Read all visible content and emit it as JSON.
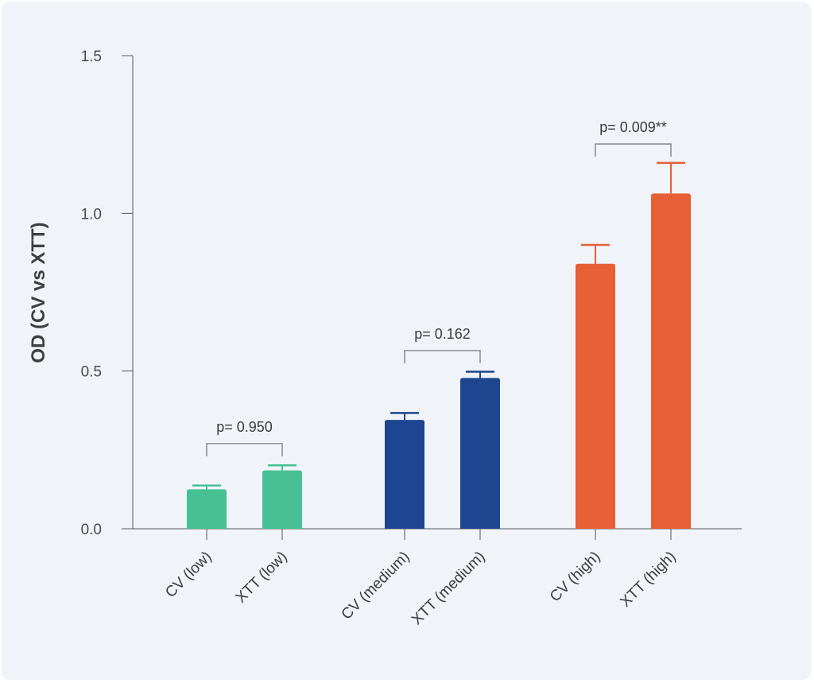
{
  "chart_data": {
    "type": "bar",
    "title": "",
    "xlabel": "",
    "ylabel": "OD (CV vs XTT)",
    "ylim": [
      0,
      1.5
    ],
    "yticks": [
      "0.0",
      "0.5",
      "1.0",
      "1.5"
    ],
    "ytick_values": [
      0,
      0.5,
      1.0,
      1.5
    ],
    "grid": false,
    "categories": [
      "CV (low)",
      "XTT (low)",
      "CV (medium)",
      "XTT (medium)",
      "CV (high)",
      "XTT (high)"
    ],
    "values": [
      0.125,
      0.185,
      0.345,
      0.478,
      0.84,
      1.063
    ],
    "errors": [
      0.012,
      0.016,
      0.022,
      0.02,
      0.06,
      0.097
    ],
    "colors": [
      "#46c094",
      "#46c094",
      "#1e4590",
      "#1e4590",
      "#e65f35",
      "#e65f35"
    ],
    "comparisons": [
      {
        "label": "p= 0.950",
        "between": [
          0,
          1
        ],
        "level": 0.27
      },
      {
        "label": "p= 0.162",
        "between": [
          2,
          3
        ],
        "level": 0.565
      },
      {
        "label": "p= 0.009**",
        "between": [
          4,
          5
        ],
        "level": 1.22
      }
    ]
  }
}
